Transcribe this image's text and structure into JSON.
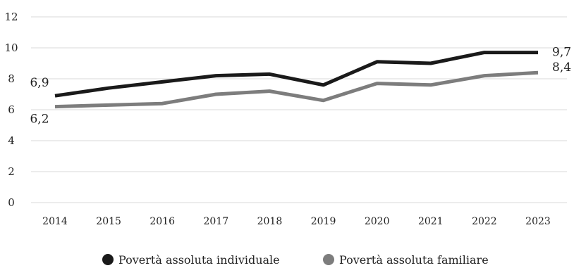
{
  "chart_data": {
    "type": "line",
    "title": "",
    "xlabel": "",
    "ylabel": "",
    "categories": [
      "2014",
      "2015",
      "2016",
      "2017",
      "2018",
      "2019",
      "2020",
      "2021",
      "2022",
      "2023"
    ],
    "ylim": [
      0,
      12
    ],
    "yticks": [
      "0",
      "2",
      "4",
      "6",
      "8",
      "10",
      "12"
    ],
    "grid": true,
    "legend_position": "bottom",
    "series": [
      {
        "name": "Povertà assoluta individuale",
        "color": "#1a1a1a",
        "values": [
          6.9,
          7.4,
          7.8,
          8.2,
          8.3,
          7.6,
          9.1,
          9.0,
          9.7,
          9.7
        ],
        "labels": [
          {
            "index": 0,
            "text": "6,9"
          },
          {
            "index": 9,
            "text": "9,7"
          }
        ]
      },
      {
        "name": "Povertà assoluta familiare",
        "color": "#7d7d7d",
        "values": [
          6.2,
          6.3,
          6.4,
          7.0,
          7.2,
          6.6,
          7.7,
          7.6,
          8.2,
          8.4
        ],
        "labels": [
          {
            "index": 0,
            "text": "6,2"
          },
          {
            "index": 9,
            "text": "8,4"
          }
        ]
      }
    ]
  }
}
